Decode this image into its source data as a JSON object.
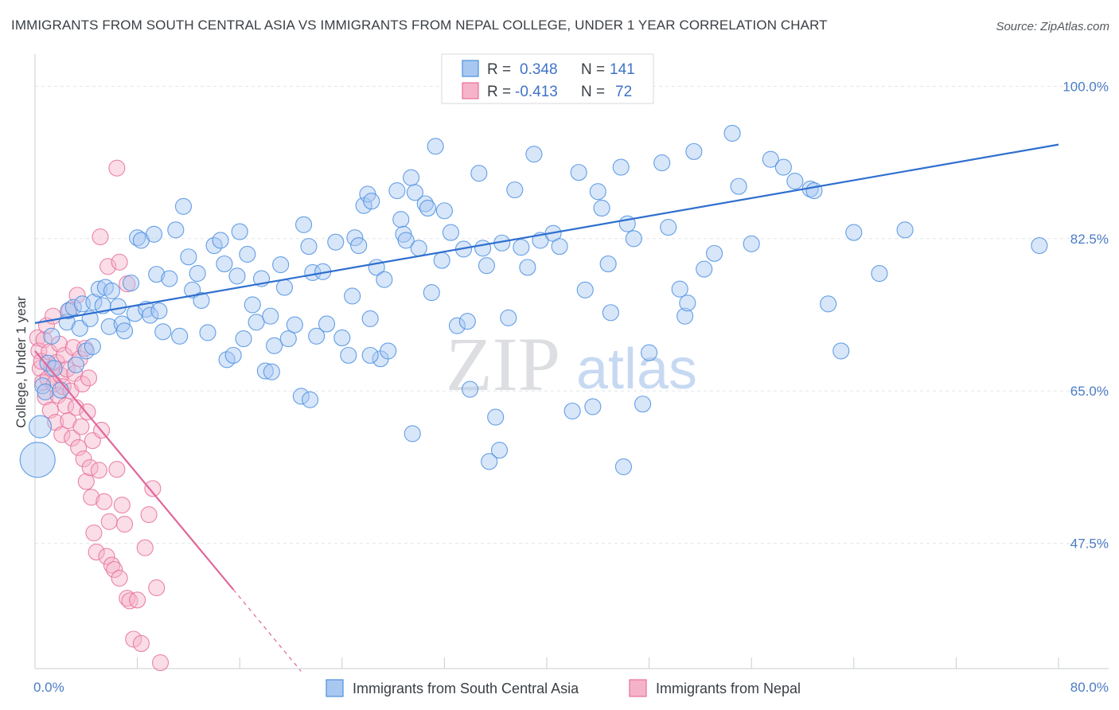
{
  "title": "IMMIGRANTS FROM SOUTH CENTRAL ASIA VS IMMIGRANTS FROM NEPAL COLLEGE, UNDER 1 YEAR CORRELATION CHART",
  "source": "Source: ZipAtlas.com",
  "watermark": {
    "zip": "ZIP",
    "atlas": "atlas"
  },
  "colors": {
    "blue": "#4a8fe0",
    "blue_fill": "#a9c8f1",
    "pink": "#e8709a",
    "pink_fill": "#f5b3c9",
    "blue_line": "#2f6fcf",
    "pink_line": "#e0679a"
  },
  "chart_data": {
    "type": "scatter",
    "xlabel": "",
    "ylabel": "College, Under 1 year",
    "xlim": [
      0,
      80
    ],
    "ylim": [
      33,
      102
    ],
    "x_tick_labels": [
      {
        "value": 0,
        "label": "0.0%"
      },
      {
        "value": 80,
        "label": "80.0%"
      }
    ],
    "y_tick_labels": [
      {
        "value": 100,
        "label": "100.0%"
      },
      {
        "value": 82.5,
        "label": "82.5%"
      },
      {
        "value": 65,
        "label": "65.0%"
      },
      {
        "value": 47.5,
        "label": "47.5%"
      }
    ],
    "legend_box": [
      {
        "r_label": "R =",
        "r_value": "0.348",
        "n_label": "N =",
        "n_value": "141"
      },
      {
        "r_label": "R =",
        "r_value": "-0.413",
        "n_label": "N =",
        "n_value": "72"
      }
    ],
    "series": [
      {
        "name": "Immigrants from South Central Asia",
        "trend": {
          "x": [
            0,
            80
          ],
          "y": [
            72.8,
            93.3
          ]
        },
        "points": [
          [
            0.2,
            57.1,
            22
          ],
          [
            0.4,
            60.9,
            14
          ],
          [
            0.6,
            65.6,
            10
          ],
          [
            0.8,
            64.9,
            10
          ],
          [
            1.0,
            68.2,
            10
          ],
          [
            1.3,
            71.3,
            10
          ],
          [
            1.5,
            67.6,
            10
          ],
          [
            2.0,
            65.1,
            10
          ],
          [
            2.5,
            72.9,
            10
          ],
          [
            2.6,
            74.2,
            10
          ],
          [
            3.0,
            74.6,
            10
          ],
          [
            3.2,
            68.0,
            10
          ],
          [
            3.5,
            72.2,
            10
          ],
          [
            3.7,
            75.0,
            10
          ],
          [
            4.0,
            69.6,
            10
          ],
          [
            4.3,
            73.3,
            10
          ],
          [
            4.5,
            70.1,
            10
          ],
          [
            4.6,
            75.2,
            10
          ],
          [
            5.0,
            76.7,
            10
          ],
          [
            5.3,
            74.8,
            10
          ],
          [
            5.5,
            76.9,
            10
          ],
          [
            5.8,
            72.4,
            10
          ],
          [
            6.0,
            76.5,
            10
          ],
          [
            6.5,
            74.7,
            10
          ],
          [
            6.8,
            72.7,
            10
          ],
          [
            7.0,
            71.9,
            10
          ],
          [
            7.5,
            77.4,
            10
          ],
          [
            7.8,
            73.9,
            10
          ],
          [
            8.0,
            82.6,
            10
          ],
          [
            8.3,
            82.3,
            10
          ],
          [
            8.7,
            74.4,
            10
          ],
          [
            9.0,
            73.7,
            10
          ],
          [
            9.3,
            83.0,
            10
          ],
          [
            9.5,
            78.4,
            10
          ],
          [
            9.7,
            74.2,
            10
          ],
          [
            10.0,
            71.8,
            10
          ],
          [
            10.5,
            77.9,
            10
          ],
          [
            11.0,
            83.5,
            10
          ],
          [
            11.3,
            71.3,
            10
          ],
          [
            11.6,
            86.2,
            10
          ],
          [
            12.0,
            80.4,
            10
          ],
          [
            12.3,
            76.6,
            10
          ],
          [
            12.7,
            78.5,
            10
          ],
          [
            13.0,
            75.4,
            10
          ],
          [
            13.5,
            71.7,
            10
          ],
          [
            14.0,
            81.7,
            10
          ],
          [
            14.5,
            82.3,
            10
          ],
          [
            14.8,
            79.6,
            10
          ],
          [
            15.0,
            68.6,
            10
          ],
          [
            15.5,
            69.1,
            10
          ],
          [
            15.8,
            78.2,
            10
          ],
          [
            16.0,
            83.3,
            10
          ],
          [
            16.3,
            71.0,
            10
          ],
          [
            16.6,
            80.7,
            10
          ],
          [
            17.0,
            74.9,
            10
          ],
          [
            17.3,
            72.9,
            10
          ],
          [
            17.7,
            77.9,
            10
          ],
          [
            18.0,
            67.3,
            10
          ],
          [
            18.4,
            73.6,
            10
          ],
          [
            18.7,
            70.2,
            10
          ],
          [
            19.2,
            79.5,
            10
          ],
          [
            19.5,
            76.9,
            10
          ],
          [
            19.8,
            71.0,
            10
          ],
          [
            20.3,
            72.6,
            10
          ],
          [
            20.8,
            64.4,
            10
          ],
          [
            21.0,
            84.1,
            10
          ],
          [
            21.4,
            81.6,
            10
          ],
          [
            21.7,
            78.6,
            10
          ],
          [
            22.0,
            71.3,
            10
          ],
          [
            22.5,
            78.7,
            10
          ],
          [
            22.8,
            72.7,
            10
          ],
          [
            23.5,
            82.1,
            10
          ],
          [
            24.0,
            71.1,
            10
          ],
          [
            24.5,
            69.1,
            10
          ],
          [
            24.8,
            75.9,
            10
          ],
          [
            25.0,
            82.6,
            10
          ],
          [
            25.3,
            81.7,
            10
          ],
          [
            25.7,
            86.3,
            10
          ],
          [
            26.0,
            87.6,
            10
          ],
          [
            26.3,
            86.8,
            10
          ],
          [
            26.7,
            79.2,
            10
          ],
          [
            27.0,
            68.7,
            10
          ],
          [
            27.3,
            77.8,
            10
          ],
          [
            27.6,
            69.6,
            10
          ],
          [
            28.3,
            88.0,
            10
          ],
          [
            28.6,
            84.7,
            10
          ],
          [
            28.8,
            83.0,
            10
          ],
          [
            29.0,
            82.3,
            10
          ],
          [
            29.4,
            89.5,
            10
          ],
          [
            29.7,
            87.8,
            10
          ],
          [
            30.0,
            81.4,
            10
          ],
          [
            30.5,
            86.5,
            10
          ],
          [
            30.7,
            86.0,
            10
          ],
          [
            31.0,
            76.3,
            10
          ],
          [
            31.3,
            93.1,
            10
          ],
          [
            31.8,
            80.0,
            10
          ],
          [
            32.0,
            85.7,
            10
          ],
          [
            32.5,
            83.2,
            10
          ],
          [
            33.0,
            72.5,
            10
          ],
          [
            33.5,
            81.3,
            10
          ],
          [
            33.8,
            73.0,
            10
          ],
          [
            34.0,
            65.2,
            10
          ],
          [
            34.7,
            90.0,
            10
          ],
          [
            35.0,
            81.4,
            10
          ],
          [
            35.3,
            79.4,
            10
          ],
          [
            36.0,
            62.0,
            10
          ],
          [
            36.5,
            82.0,
            10
          ],
          [
            37.0,
            73.4,
            10
          ],
          [
            37.5,
            88.1,
            10
          ],
          [
            38.0,
            81.5,
            10
          ],
          [
            38.5,
            79.2,
            10
          ],
          [
            39.0,
            92.2,
            10
          ],
          [
            39.5,
            82.3,
            10
          ],
          [
            40.5,
            83.1,
            10
          ],
          [
            41.0,
            81.6,
            10
          ],
          [
            42.0,
            62.7,
            10
          ],
          [
            42.5,
            90.1,
            10
          ],
          [
            43.0,
            76.6,
            10
          ],
          [
            43.6,
            63.2,
            10
          ],
          [
            44.0,
            87.9,
            10
          ],
          [
            44.3,
            86.0,
            10
          ],
          [
            44.8,
            79.6,
            10
          ],
          [
            45.0,
            74.0,
            10
          ],
          [
            45.8,
            90.7,
            10
          ],
          [
            46.0,
            56.3,
            10
          ],
          [
            46.3,
            84.2,
            10
          ],
          [
            46.8,
            82.5,
            10
          ],
          [
            47.5,
            63.5,
            10
          ],
          [
            48.0,
            69.4,
            10
          ],
          [
            49.0,
            91.2,
            10
          ],
          [
            49.5,
            83.8,
            10
          ],
          [
            50.4,
            76.7,
            10
          ],
          [
            50.8,
            73.6,
            10
          ],
          [
            51.0,
            75.1,
            10
          ],
          [
            51.5,
            92.5,
            10
          ],
          [
            52.3,
            79.0,
            10
          ],
          [
            53.1,
            80.8,
            10
          ],
          [
            54.5,
            94.6,
            10
          ],
          [
            55.0,
            88.5,
            10
          ],
          [
            56.0,
            81.9,
            10
          ],
          [
            57.5,
            91.6,
            10
          ],
          [
            58.5,
            90.7,
            10
          ],
          [
            59.4,
            89.1,
            10
          ],
          [
            60.6,
            88.2,
            10
          ],
          [
            60.9,
            88.0,
            10
          ],
          [
            62.0,
            75.0,
            10
          ],
          [
            63.0,
            69.6,
            10
          ],
          [
            64.0,
            83.2,
            10
          ],
          [
            66.0,
            78.5,
            10
          ],
          [
            68.0,
            83.5,
            10
          ],
          [
            78.5,
            81.7,
            10
          ],
          [
            18.5,
            67.2,
            10
          ],
          [
            21.5,
            64.0,
            10
          ],
          [
            26.2,
            69.1,
            10
          ],
          [
            29.5,
            60.1,
            10
          ],
          [
            35.5,
            56.9,
            10
          ],
          [
            36.3,
            58.2,
            10
          ],
          [
            26.2,
            73.3,
            10
          ]
        ]
      },
      {
        "name": "Immigrants from Nepal",
        "trend": {
          "x": [
            0,
            15.5
          ],
          "y": [
            69.6,
            42.2
          ]
        },
        "trend_dashed": {
          "x": [
            15.5,
            20.8
          ],
          "y": [
            42.2,
            32.8
          ]
        },
        "points": [
          [
            0.2,
            71.1,
            10
          ],
          [
            0.3,
            69.6,
            10
          ],
          [
            0.4,
            67.6,
            10
          ],
          [
            0.5,
            68.4,
            10
          ],
          [
            0.6,
            66.0,
            10
          ],
          [
            0.7,
            70.9,
            10
          ],
          [
            0.8,
            64.3,
            10
          ],
          [
            0.9,
            72.5,
            10
          ],
          [
            1.0,
            66.4,
            10
          ],
          [
            1.1,
            69.5,
            10
          ],
          [
            1.2,
            62.8,
            10
          ],
          [
            1.3,
            67.6,
            10
          ],
          [
            1.4,
            73.6,
            10
          ],
          [
            1.5,
            65.8,
            10
          ],
          [
            1.6,
            61.4,
            10
          ],
          [
            1.7,
            68.3,
            10
          ],
          [
            1.8,
            64.5,
            10
          ],
          [
            1.9,
            70.4,
            10
          ],
          [
            2.0,
            66.8,
            10
          ],
          [
            2.1,
            60.0,
            10
          ],
          [
            2.2,
            65.5,
            10
          ],
          [
            2.3,
            69.1,
            10
          ],
          [
            2.4,
            63.3,
            10
          ],
          [
            2.5,
            67.5,
            10
          ],
          [
            2.6,
            61.6,
            10
          ],
          [
            2.7,
            74.3,
            10
          ],
          [
            2.8,
            65.0,
            10
          ],
          [
            2.9,
            59.6,
            10
          ],
          [
            3.0,
            70.0,
            10
          ],
          [
            3.1,
            67.0,
            10
          ],
          [
            3.2,
            63.1,
            10
          ],
          [
            3.3,
            76.0,
            10
          ],
          [
            3.4,
            58.5,
            10
          ],
          [
            3.5,
            68.7,
            10
          ],
          [
            3.6,
            60.9,
            10
          ],
          [
            3.7,
            65.8,
            10
          ],
          [
            3.8,
            57.2,
            10
          ],
          [
            3.9,
            69.9,
            10
          ],
          [
            4.0,
            54.6,
            10
          ],
          [
            4.1,
            62.6,
            10
          ],
          [
            4.2,
            66.5,
            10
          ],
          [
            4.3,
            56.2,
            10
          ],
          [
            4.4,
            52.8,
            10
          ],
          [
            4.5,
            59.3,
            10
          ],
          [
            4.6,
            48.7,
            10
          ],
          [
            4.8,
            46.5,
            10
          ],
          [
            5.0,
            55.9,
            10
          ],
          [
            5.2,
            60.5,
            10
          ],
          [
            5.4,
            52.3,
            10
          ],
          [
            5.6,
            46.0,
            10
          ],
          [
            5.8,
            50.0,
            10
          ],
          [
            6.0,
            45.0,
            10
          ],
          [
            6.2,
            44.5,
            10
          ],
          [
            6.4,
            56.0,
            10
          ],
          [
            6.6,
            43.5,
            10
          ],
          [
            6.8,
            51.9,
            10
          ],
          [
            7.0,
            49.7,
            10
          ],
          [
            7.2,
            41.2,
            10
          ],
          [
            7.4,
            40.9,
            10
          ],
          [
            7.7,
            36.5,
            10
          ],
          [
            8.0,
            41.0,
            10
          ],
          [
            8.3,
            36.0,
            10
          ],
          [
            8.6,
            47.0,
            10
          ],
          [
            8.9,
            50.8,
            10
          ],
          [
            9.2,
            53.8,
            10
          ],
          [
            9.5,
            42.4,
            10
          ],
          [
            9.8,
            33.8,
            10
          ],
          [
            5.7,
            79.3,
            10
          ],
          [
            6.4,
            90.6,
            10
          ],
          [
            6.6,
            79.8,
            10
          ],
          [
            7.2,
            77.3,
            10
          ],
          [
            5.1,
            82.7,
            10
          ]
        ]
      }
    ]
  }
}
